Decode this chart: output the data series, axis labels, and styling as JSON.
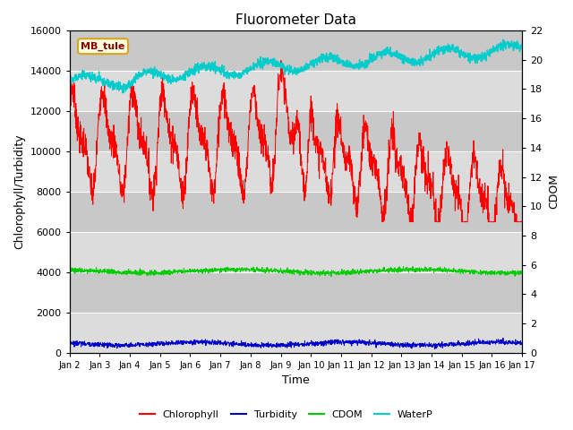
{
  "title": "Fluorometer Data",
  "xlabel": "Time",
  "ylabel_left": "Chlorophyll/Turbidity",
  "ylabel_right": "CDOM",
  "xlim": [
    2,
    17
  ],
  "ylim_left": [
    0,
    16000
  ],
  "ylim_right": [
    0,
    22
  ],
  "yticks_left": [
    0,
    2000,
    4000,
    6000,
    8000,
    10000,
    12000,
    14000,
    16000
  ],
  "yticks_right": [
    0,
    2,
    4,
    6,
    8,
    10,
    12,
    14,
    16,
    18,
    20,
    22
  ],
  "xtick_positions": [
    2,
    3,
    4,
    5,
    6,
    7,
    8,
    9,
    10,
    11,
    12,
    13,
    14,
    15,
    16,
    17
  ],
  "xtick_labels": [
    "Jan 2",
    "Jan 3",
    "Jan 4",
    "Jan 5",
    "Jan 6",
    "Jan 7",
    "Jan 8",
    "Jan 9",
    "Jan 10",
    "Jan 11",
    "Jan 12",
    "Jan 13",
    "Jan 14",
    "Jan 15",
    "Jan 16",
    "Jan 17"
  ],
  "station_label": "MB_tule",
  "bg_color": "#dcdcdc",
  "band_colors": [
    "#dcdcdc",
    "#c8c8c8"
  ],
  "title_fontsize": 11,
  "label_fontsize": 9,
  "tick_fontsize": 8,
  "legend_entries": [
    {
      "label": "Chlorophyll",
      "color": "#ff0000"
    },
    {
      "label": "Turbidity",
      "color": "#0000cc"
    },
    {
      "label": "CDOM",
      "color": "#00cc00"
    },
    {
      "label": "WaterP",
      "color": "#00cccc"
    }
  ]
}
